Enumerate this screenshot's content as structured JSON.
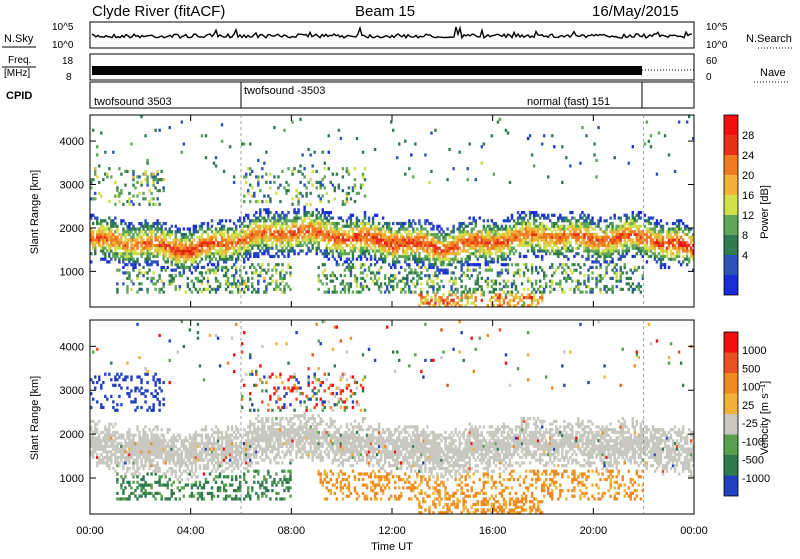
{
  "header": {
    "station": "Clyde River (fitACF)",
    "beam": "Beam 15",
    "date": "16/May/2015"
  },
  "strips": {
    "nsky_label": "N.Sky",
    "nsky_ticks": [
      "10^5",
      "10^0"
    ],
    "nsearch_label": "N.Search",
    "freq_label_top": "Freq.",
    "freq_label_bottom": "[MHz]",
    "freq_ticks": [
      "18",
      "8"
    ],
    "nave_ticks": [
      "60",
      "0"
    ],
    "nave_label": "Nave",
    "cpid_label": "CPID",
    "cpid_segments": [
      {
        "name": "twofsound 3503",
        "start_h": 0,
        "end_h": 6.0
      },
      {
        "name": "twofsound -3503",
        "start_h": 6.0,
        "end_h": 22.0
      },
      {
        "name": "normal (fast) 151",
        "start_h": 22.0,
        "end_h": 24.0
      }
    ]
  },
  "chart_data": [
    {
      "type": "heatmap",
      "panel": "power",
      "x_range_h": [
        0,
        24
      ],
      "ylabel": "Slant Range [km]",
      "ylim": [
        180,
        4600
      ],
      "yticks": [
        1000,
        2000,
        3000,
        4000
      ],
      "colorbar_label": "Power [dB]",
      "colorbar_ticks": [
        "28",
        "24",
        "20",
        "16",
        "12",
        "8",
        "4"
      ],
      "colors": [
        "#1a2cd6",
        "#2a52b8",
        "#2f7a4e",
        "#5fa65a",
        "#cfe04a",
        "#f0b23a",
        "#f07a20",
        "#e83018",
        "#f01010"
      ],
      "echo_band": {
        "description_times_h": [
          0,
          2,
          4,
          6,
          8,
          10,
          12,
          14,
          16,
          18,
          20,
          22,
          24
        ],
        "center_km": [
          1750,
          1650,
          1500,
          1750,
          1950,
          1800,
          1700,
          1550,
          1700,
          1850,
          1750,
          1800,
          1500
        ],
        "peak_db": [
          26,
          24,
          28,
          24,
          26,
          26,
          28,
          26,
          26,
          24,
          26,
          26,
          28
        ]
      }
    },
    {
      "type": "heatmap",
      "panel": "velocity",
      "x_range_h": [
        0,
        24
      ],
      "ylabel": "Slant Range [km]",
      "ylim": [
        180,
        4600
      ],
      "yticks": [
        1000,
        2000,
        3000,
        4000
      ],
      "colorbar_label": "Velocity [m s⁻¹]",
      "colorbar_ticks": [
        "1000",
        "500",
        "100",
        "25",
        "-25",
        "-100",
        "-500",
        "-1000"
      ],
      "colors": [
        "#2040c0",
        "#2f7a4e",
        "#58a050",
        "#c8c8c0",
        "#f0b23a",
        "#f08a20",
        "#e85020",
        "#f01010"
      ],
      "xlabel": "Time UT",
      "xticks": [
        "00:00",
        "04:00",
        "08:00",
        "12:00",
        "16:00",
        "20:00",
        "00:00"
      ]
    }
  ]
}
